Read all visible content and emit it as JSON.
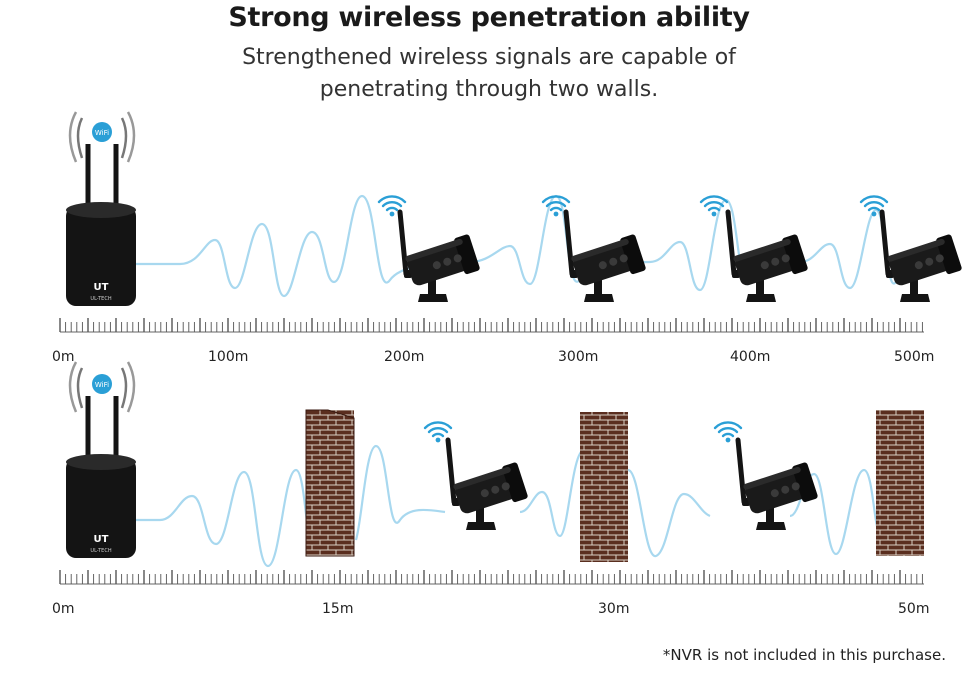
{
  "header": {
    "title": "Strong wireless penetration ability",
    "subtitle_line1": "Strengthened wireless signals are capable of",
    "subtitle_line2": "penetrating through two walls."
  },
  "nvr": {
    "badge_text": "WiFi",
    "brand_text": "UT",
    "brand_subtext": "UL-TECH"
  },
  "scale_top": {
    "labels": [
      "0m",
      "100m",
      "200m",
      "300m",
      "400m",
      "500m"
    ]
  },
  "scale_bottom": {
    "labels": [
      "0m",
      "15m",
      "30m",
      "50m"
    ]
  },
  "footnote": "*NVR is not included in this purchase.",
  "colors": {
    "signal": "#a8d8ef",
    "wifi_icon": "#2a9fd6",
    "device": "#141414",
    "brick": "#5a2e1f",
    "mortar": "#d9d0c4"
  }
}
